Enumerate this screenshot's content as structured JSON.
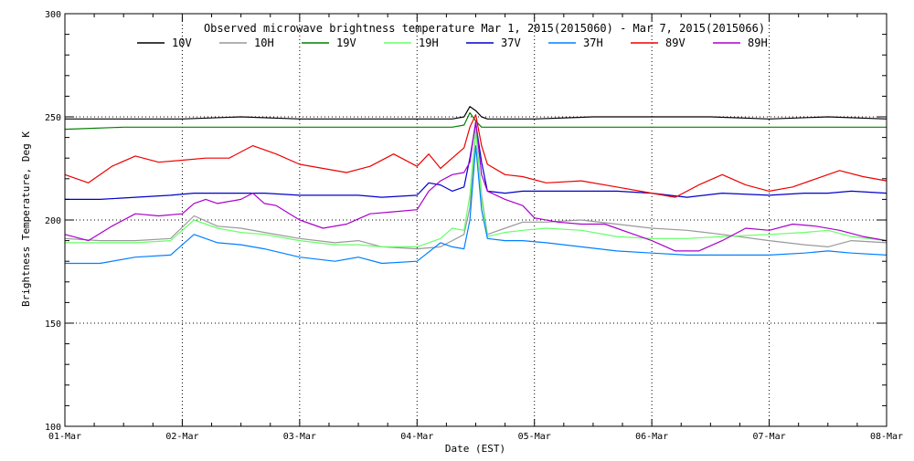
{
  "chart_data": {
    "type": "line",
    "title": "Observed microwave brightness temperature Mar  1, 2015(2015060) - Mar  7, 2015(2015066)",
    "xlabel": "Date (EST)",
    "ylabel": "Brightness Temperature, Deg K",
    "x_unit": "days since 01-Mar (EST)",
    "xlim": [
      0,
      7
    ],
    "ylim": [
      100,
      300
    ],
    "x_ticks": [
      {
        "value": 0,
        "label": "01-Mar"
      },
      {
        "value": 1,
        "label": "02-Mar"
      },
      {
        "value": 2,
        "label": "03-Mar"
      },
      {
        "value": 3,
        "label": "04-Mar"
      },
      {
        "value": 4,
        "label": "05-Mar"
      },
      {
        "value": 5,
        "label": "06-Mar"
      },
      {
        "value": 6,
        "label": "07-Mar"
      },
      {
        "value": 7,
        "label": "08-Mar"
      }
    ],
    "y_ticks": [
      {
        "value": 100,
        "label": "100"
      },
      {
        "value": 150,
        "label": "150"
      },
      {
        "value": 200,
        "label": "200"
      },
      {
        "value": 250,
        "label": "250"
      },
      {
        "value": 300,
        "label": "300"
      }
    ],
    "grid": "dotted",
    "legend_position": "top",
    "series": [
      {
        "name": "10V",
        "color": "#000000",
        "x": [
          0,
          0.5,
          1,
          1.5,
          2,
          2.5,
          3,
          3.3,
          3.4,
          3.45,
          3.5,
          3.55,
          3.6,
          4,
          4.5,
          5,
          5.5,
          6,
          6.5,
          7
        ],
        "values": [
          249,
          249,
          249,
          250,
          249,
          249,
          249,
          249,
          250,
          255,
          253,
          250,
          249,
          249,
          250,
          250,
          250,
          249,
          250,
          249
        ]
      },
      {
        "name": "10H",
        "color": "#999999",
        "x": [
          0,
          0.3,
          0.6,
          0.9,
          1.1,
          1.3,
          1.5,
          1.7,
          2,
          2.3,
          2.5,
          2.7,
          3,
          3.2,
          3.3,
          3.4,
          3.45,
          3.5,
          3.55,
          3.6,
          3.75,
          3.9,
          4.1,
          4.4,
          4.7,
          5,
          5.3,
          5.6,
          6,
          6.3,
          6.5,
          6.7,
          7
        ],
        "values": [
          191,
          190,
          190,
          191,
          202,
          197,
          196,
          194,
          191,
          189,
          190,
          187,
          186,
          187,
          190,
          193,
          206,
          244,
          212,
          193,
          196,
          199,
          199,
          200,
          198,
          196,
          195,
          193,
          190,
          188,
          187,
          190,
          189
        ]
      },
      {
        "name": "19V",
        "color": "#008000",
        "x": [
          0,
          0.5,
          1,
          1.5,
          2,
          2.5,
          3,
          3.3,
          3.4,
          3.45,
          3.5,
          3.55,
          3.6,
          4,
          4.5,
          5,
          5.5,
          6,
          6.5,
          7
        ],
        "values": [
          244,
          245,
          245,
          245,
          245,
          245,
          245,
          245,
          246,
          252,
          248,
          245,
          245,
          245,
          245,
          245,
          245,
          245,
          245,
          245
        ]
      },
      {
        "name": "19H",
        "color": "#66ff66",
        "x": [
          0,
          0.3,
          0.6,
          0.9,
          1.1,
          1.3,
          1.5,
          1.7,
          2,
          2.3,
          2.5,
          2.7,
          3,
          3.2,
          3.3,
          3.4,
          3.45,
          3.5,
          3.55,
          3.6,
          3.75,
          3.9,
          4.1,
          4.4,
          4.7,
          5,
          5.3,
          5.6,
          6,
          6.3,
          6.5,
          6.7,
          7
        ],
        "values": [
          189,
          189,
          189,
          190,
          200,
          196,
          194,
          193,
          190,
          188,
          188,
          187,
          187,
          191,
          196,
          195,
          212,
          244,
          210,
          192,
          194,
          195,
          196,
          195,
          192,
          191,
          191,
          192,
          193,
          194,
          195,
          192,
          190
        ]
      },
      {
        "name": "37V",
        "color": "#0000cc",
        "x": [
          0,
          0.3,
          0.6,
          0.9,
          1.1,
          1.3,
          1.5,
          1.7,
          2,
          2.3,
          2.5,
          2.7,
          3,
          3.1,
          3.2,
          3.3,
          3.4,
          3.45,
          3.5,
          3.55,
          3.6,
          3.75,
          3.9,
          4.1,
          4.4,
          4.7,
          5,
          5.3,
          5.6,
          6,
          6.3,
          6.5,
          6.7,
          7
        ],
        "values": [
          210,
          210,
          211,
          212,
          213,
          213,
          213,
          213,
          212,
          212,
          212,
          211,
          212,
          218,
          217,
          214,
          216,
          230,
          247,
          228,
          214,
          213,
          214,
          214,
          214,
          214,
          213,
          211,
          213,
          212,
          213,
          213,
          214,
          213
        ]
      },
      {
        "name": "37H",
        "color": "#0080ff",
        "x": [
          0,
          0.3,
          0.6,
          0.9,
          1.1,
          1.3,
          1.5,
          1.7,
          2,
          2.3,
          2.5,
          2.7,
          3,
          3.2,
          3.3,
          3.4,
          3.45,
          3.5,
          3.55,
          3.6,
          3.75,
          3.9,
          4.1,
          4.4,
          4.7,
          5,
          5.3,
          5.6,
          6,
          6.3,
          6.5,
          6.7,
          7
        ],
        "values": [
          179,
          179,
          182,
          183,
          193,
          189,
          188,
          186,
          182,
          180,
          182,
          179,
          180,
          189,
          187,
          186,
          200,
          236,
          205,
          191,
          190,
          190,
          189,
          187,
          185,
          184,
          183,
          183,
          183,
          184,
          185,
          184,
          183
        ]
      },
      {
        "name": "89V",
        "color": "#ee0000",
        "x": [
          0,
          0.2,
          0.4,
          0.6,
          0.8,
          1,
          1.2,
          1.4,
          1.6,
          1.8,
          2,
          2.2,
          2.4,
          2.6,
          2.8,
          3,
          3.1,
          3.2,
          3.3,
          3.4,
          3.45,
          3.5,
          3.55,
          3.6,
          3.75,
          3.9,
          4.1,
          4.4,
          4.7,
          5,
          5.2,
          5.4,
          5.6,
          5.8,
          6,
          6.2,
          6.4,
          6.6,
          6.8,
          7
        ],
        "values": [
          222,
          218,
          226,
          231,
          228,
          229,
          230,
          230,
          236,
          232,
          227,
          225,
          223,
          226,
          232,
          226,
          232,
          225,
          230,
          235,
          245,
          251,
          236,
          227,
          222,
          221,
          218,
          219,
          216,
          213,
          211,
          217,
          222,
          217,
          214,
          216,
          220,
          224,
          221,
          219
        ]
      },
      {
        "name": "89H",
        "color": "#aa00cc",
        "x": [
          0,
          0.2,
          0.4,
          0.6,
          0.8,
          1,
          1.1,
          1.2,
          1.3,
          1.5,
          1.6,
          1.7,
          1.8,
          2,
          2.2,
          2.4,
          2.6,
          2.8,
          3,
          3.1,
          3.2,
          3.3,
          3.4,
          3.45,
          3.5,
          3.55,
          3.6,
          3.75,
          3.9,
          4,
          4.2,
          4.4,
          4.6,
          4.8,
          5,
          5.2,
          5.4,
          5.6,
          5.8,
          6,
          6.2,
          6.4,
          6.6,
          6.8,
          7
        ],
        "values": [
          193,
          190,
          197,
          203,
          202,
          203,
          208,
          210,
          208,
          210,
          213,
          208,
          207,
          200,
          196,
          198,
          203,
          204,
          205,
          214,
          219,
          222,
          223,
          228,
          248,
          222,
          214,
          210,
          207,
          201,
          199,
          198,
          198,
          194,
          190,
          185,
          185,
          190,
          196,
          195,
          198,
          197,
          195,
          192,
          190
        ]
      }
    ]
  }
}
